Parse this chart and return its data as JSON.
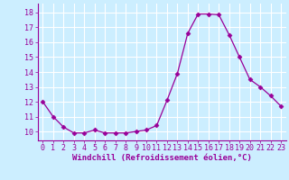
{
  "x": [
    0,
    1,
    2,
    3,
    4,
    5,
    6,
    7,
    8,
    9,
    10,
    11,
    12,
    13,
    14,
    15,
    16,
    17,
    18,
    19,
    20,
    21,
    22,
    23
  ],
  "y": [
    12.0,
    11.0,
    10.3,
    9.9,
    9.9,
    10.1,
    9.9,
    9.9,
    9.9,
    10.0,
    10.1,
    10.4,
    12.1,
    13.9,
    16.6,
    17.9,
    17.9,
    17.85,
    16.5,
    15.0,
    13.5,
    13.0,
    12.4,
    11.7
  ],
  "line_color": "#990099",
  "marker": "D",
  "marker_size": 2.5,
  "bg_color": "#cceeff",
  "grid_color": "#ffffff",
  "xlabel": "Windchill (Refroidissement éolien,°C)",
  "xlabel_fontsize": 6.5,
  "tick_fontsize": 6.0,
  "tick_color": "#990099",
  "ylim": [
    9.4,
    18.6
  ],
  "yticks": [
    10,
    11,
    12,
    13,
    14,
    15,
    16,
    17,
    18
  ],
  "xlim": [
    -0.5,
    23.5
  ],
  "xticks": [
    0,
    1,
    2,
    3,
    4,
    5,
    6,
    7,
    8,
    9,
    10,
    11,
    12,
    13,
    14,
    15,
    16,
    17,
    18,
    19,
    20,
    21,
    22,
    23
  ]
}
